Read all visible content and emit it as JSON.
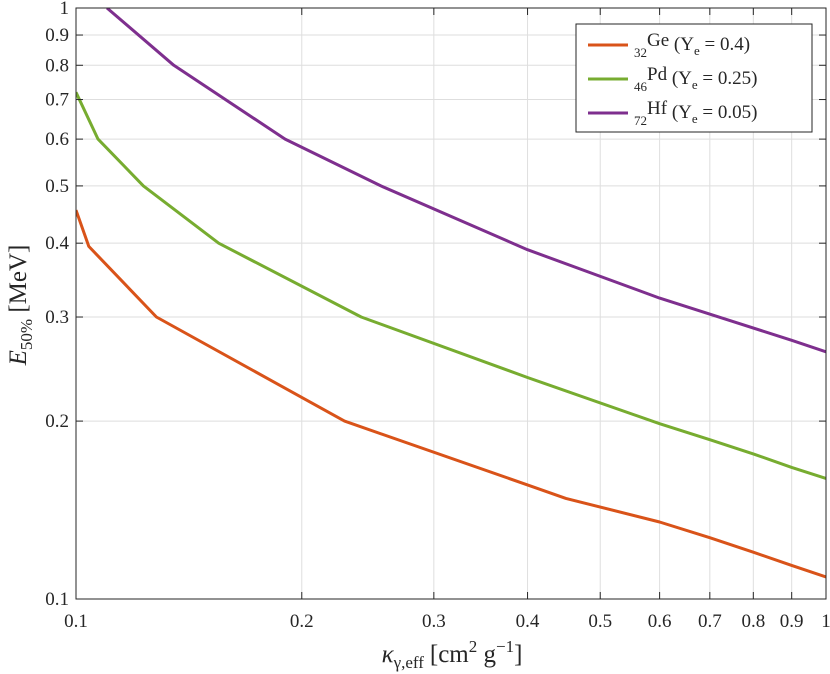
{
  "chart_data": {
    "type": "line",
    "x_scale": "log",
    "y_scale": "log",
    "xlim": [
      0.1,
      1
    ],
    "ylim": [
      0.1,
      1
    ],
    "grid": true,
    "legend_position": "top-right",
    "x_ticks": [
      "0.1",
      "0.2",
      "0.3",
      "0.4",
      "0.5",
      "0.6",
      "0.7",
      "0.8",
      "0.9",
      "1"
    ],
    "y_ticks": [
      "0.1",
      "0.2",
      "0.3",
      "0.4",
      "0.5",
      "0.6",
      "0.7",
      "0.8",
      "0.9",
      "1"
    ],
    "xlabel": {
      "symbol": "κ",
      "subscript": "γ,eff",
      "unit_open": "[cm",
      "unit_exp1": "2",
      "unit_mid": " g",
      "unit_exp2": "−1",
      "unit_close": "]"
    },
    "ylabel": {
      "symbol": "E",
      "subscript": "50%",
      "unit": " [MeV]"
    },
    "series": [
      {
        "name": "32Ge (Ye = 0.4)",
        "legend": {
          "pre_sub": "32",
          "element": "Ge",
          "open": " (Y",
          "ye_sub": "e",
          "rest": " = 0.4)"
        },
        "color": "#d95319",
        "x": [
          0.1,
          0.104,
          0.128,
          0.228,
          0.4,
          0.45,
          0.6,
          0.7,
          0.8,
          0.9,
          1.0
        ],
        "y": [
          0.455,
          0.395,
          0.3,
          0.2,
          0.156,
          0.148,
          0.135,
          0.127,
          0.12,
          0.114,
          0.109
        ]
      },
      {
        "name": "46Pd (Ye = 0.25)",
        "legend": {
          "pre_sub": "46",
          "element": "Pd",
          "open": " (Y",
          "ye_sub": "e",
          "rest": " = 0.25)"
        },
        "color": "#77ac30",
        "x": [
          0.1,
          0.107,
          0.123,
          0.155,
          0.24,
          0.4,
          0.6,
          0.7,
          0.8,
          0.9,
          1.0
        ],
        "y": [
          0.72,
          0.6,
          0.5,
          0.4,
          0.3,
          0.237,
          0.198,
          0.186,
          0.176,
          0.167,
          0.16
        ]
      },
      {
        "name": "72Hf (Ye = 0.05)",
        "legend": {
          "pre_sub": "72",
          "element": "Hf",
          "open": " (Y",
          "ye_sub": "e",
          "rest": " = 0.05)"
        },
        "color": "#7e2f8e",
        "x": [
          0.11,
          0.135,
          0.19,
          0.255,
          0.4,
          0.6,
          0.75,
          0.9,
          1.0
        ],
        "y": [
          1.0,
          0.8,
          0.6,
          0.5,
          0.39,
          0.323,
          0.295,
          0.274,
          0.262
        ]
      }
    ]
  }
}
